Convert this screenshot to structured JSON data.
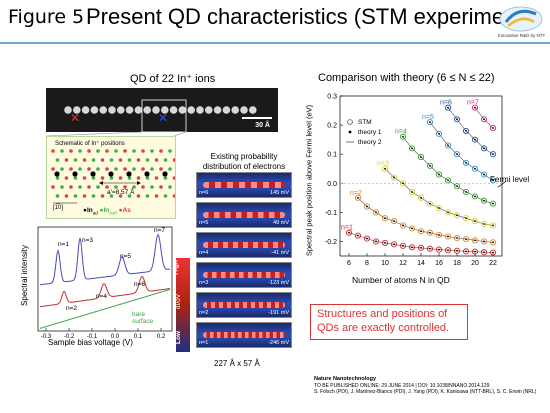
{
  "header": {
    "figure_number": "Figure 5",
    "title": "Present QD characteristics (STM experiment)",
    "logo_tagline": "Innovative R&D by NTT"
  },
  "left": {
    "section_title": "QD of 22 In⁺ ions",
    "stm_scale": "30 Å",
    "schematic_title": "Schematic of In⁺ positions",
    "schematic_lattice": "a′=8.57 Å",
    "schematic_direction": "[1̅0]",
    "legend": {
      "in_ad": "In",
      "in_ad_sub": "ad",
      "in_surf": "In",
      "in_surf_sub": "surf",
      "as": "As"
    }
  },
  "spectra": {
    "ylabel": "Spectral intensity",
    "xlabel": "Sample bias voltage (V)",
    "xticks": [
      "-0.3",
      "-0.2",
      "-0.1",
      "0.0",
      "0.1",
      "0.2"
    ],
    "labels": [
      "n=1",
      "n=3",
      "n=5",
      "n=7",
      "n=2",
      "n=4",
      "n=6"
    ],
    "bare_surface": "bare\nsurface"
  },
  "probability": {
    "title": "Existing probability distribution of electrons",
    "side_high": "High",
    "side_low": "Low",
    "side_didv": "dI/dV",
    "rows": [
      {
        "n": "n=6",
        "v": "145 mV"
      },
      {
        "n": "n=5",
        "v": "49 mV"
      },
      {
        "n": "n=4",
        "v": "-41 mV"
      },
      {
        "n": "n=3",
        "v": "-123 mV"
      },
      {
        "n": "n=2",
        "v": "-191 mV"
      },
      {
        "n": "n=1",
        "v": "-246 mV"
      }
    ],
    "size": "227 Å x 57 Å"
  },
  "chart_data": {
    "type": "scatter",
    "title": "Comparison with theory (6 ≤ N ≤ 22)",
    "xlabel": "Number of atoms N in QD",
    "ylabel": "Spectral peak position above Fermi level (eV)",
    "xlim": [
      5,
      23
    ],
    "ylim": [
      -0.25,
      0.3
    ],
    "xticks": [
      "6",
      "8",
      "10",
      "12",
      "14",
      "16",
      "18",
      "20",
      "22"
    ],
    "yticks": [
      "0.3",
      "0.2",
      "0.1",
      "0.0",
      "-0.1",
      "-0.2"
    ],
    "legend": [
      "STM",
      "theory 1",
      "theory 2"
    ],
    "fermi_label": "Fermi level",
    "series": [
      {
        "name": "n=1",
        "color": "#d62020",
        "x": [
          6,
          7,
          8,
          9,
          10,
          11,
          12,
          13,
          14,
          15,
          16,
          17,
          18,
          19,
          20,
          21,
          22
        ],
        "values": [
          -0.17,
          -0.18,
          -0.19,
          -0.2,
          -0.205,
          -0.21,
          -0.215,
          -0.22,
          -0.222,
          -0.225,
          -0.228,
          -0.23,
          -0.232,
          -0.234,
          -0.235,
          -0.237,
          -0.238
        ]
      },
      {
        "name": "n=2",
        "color": "#e08020",
        "x": [
          7,
          8,
          9,
          10,
          11,
          12,
          13,
          14,
          15,
          16,
          17,
          18,
          19,
          20,
          21,
          22
        ],
        "values": [
          -0.05,
          -0.08,
          -0.1,
          -0.12,
          -0.13,
          -0.145,
          -0.155,
          -0.165,
          -0.17,
          -0.178,
          -0.183,
          -0.188,
          -0.192,
          -0.196,
          -0.2,
          -0.203
        ]
      },
      {
        "name": "n=3",
        "color": "#d8d020",
        "x": [
          10,
          11,
          12,
          13,
          14,
          15,
          16,
          17,
          18,
          19,
          20,
          21,
          22
        ],
        "values": [
          0.05,
          0.02,
          -0.0,
          -0.03,
          -0.05,
          -0.07,
          -0.085,
          -0.1,
          -0.11,
          -0.12,
          -0.13,
          -0.14,
          -0.145
        ]
      },
      {
        "name": "n=4",
        "color": "#30a030",
        "x": [
          12,
          13,
          14,
          15,
          16,
          17,
          18,
          19,
          20,
          21,
          22
        ],
        "values": [
          0.16,
          0.12,
          0.09,
          0.06,
          0.03,
          0.01,
          -0.01,
          -0.03,
          -0.045,
          -0.06,
          -0.07
        ]
      },
      {
        "name": "n=5",
        "color": "#3090d0",
        "x": [
          15,
          16,
          17,
          18,
          19,
          20,
          21,
          22
        ],
        "values": [
          0.21,
          0.17,
          0.13,
          0.1,
          0.07,
          0.05,
          0.03,
          0.01
        ]
      },
      {
        "name": "n=6",
        "color": "#2050a0",
        "x": [
          17,
          18,
          19,
          20,
          21,
          22
        ],
        "values": [
          0.26,
          0.22,
          0.18,
          0.15,
          0.12,
          0.1
        ]
      },
      {
        "name": "n=7",
        "color": "#d02080",
        "x": [
          20,
          21,
          22
        ],
        "values": [
          0.26,
          0.22,
          0.19
        ]
      }
    ]
  },
  "conclusion": "Structures and positions of QDs are exactly controlled.",
  "citation": {
    "journal": "Nature Nanotechnology",
    "line1": "TO BE PUBLISHED ONLINE: 29 JUNE 2014 | DOI: 10.1038/NNANO.2014.129",
    "line2": "S. Fölsch (PDI), J. Martínez-Blanco (PDI), J. Yang (PDI), K. Kanisawa (NTT-BRL), S. C. Erwin (NRL)"
  }
}
